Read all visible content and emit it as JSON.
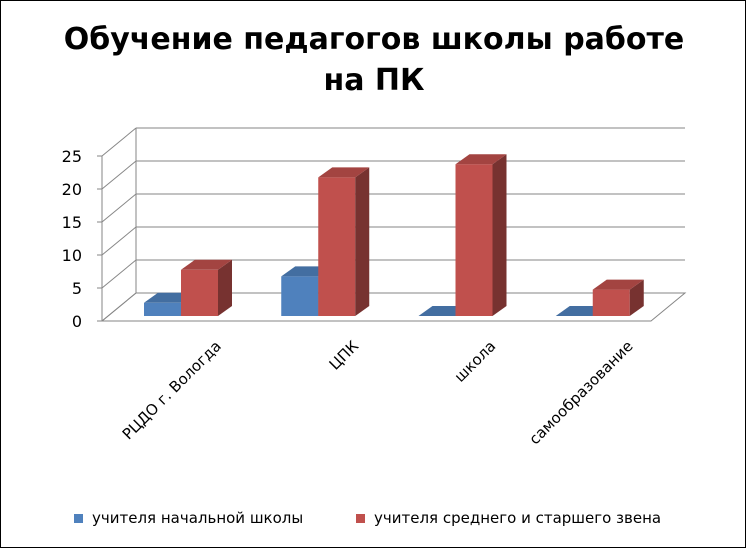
{
  "chart_data": {
    "type": "bar",
    "title": "Обучение педагогов школы работе на ПК",
    "categories": [
      "РЦДО г. Вологда",
      "ЦПК",
      "школа",
      "самообразование"
    ],
    "series": [
      {
        "name": "учителя начальной школы",
        "values": [
          2,
          6,
          0,
          0
        ],
        "color": "#4f81bd"
      },
      {
        "name": "учителя среднего и старшего звена",
        "values": [
          7,
          21,
          23,
          4
        ],
        "color": "#c0504d"
      }
    ],
    "yticks": [
      "0",
      "5",
      "10",
      "15",
      "20",
      "25"
    ],
    "ylim": [
      0,
      25
    ],
    "grid": true,
    "legend": "bottom",
    "three_d": true
  }
}
